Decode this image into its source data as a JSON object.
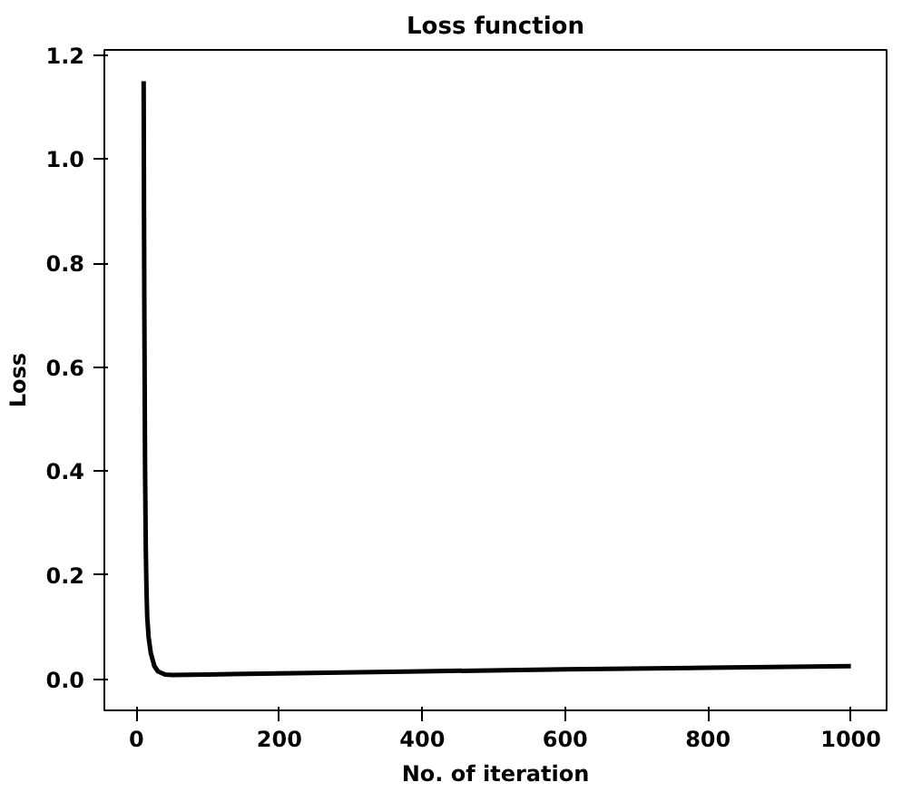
{
  "chart_data": {
    "type": "line",
    "title": "Loss function",
    "xlabel": "No. of iteration",
    "ylabel": "Loss",
    "xlim": [
      -45,
      1050
    ],
    "ylim": [
      -0.06,
      1.21
    ],
    "xticks": [
      0,
      200,
      400,
      600,
      800,
      1000
    ],
    "yticks": [
      {
        "value": 0,
        "label": "0.0"
      },
      {
        "value": 0.2,
        "label": "0.2"
      },
      {
        "value": 0.4,
        "label": "0.4"
      },
      {
        "value": 0.6,
        "label": "0.6"
      },
      {
        "value": 0.8,
        "label": "0.8"
      },
      {
        "value": 1,
        "label": "1.0"
      },
      {
        "value": 1.2,
        "label": "1.2"
      }
    ],
    "grid": false,
    "series": [
      {
        "color": "#000000",
        "x": [
          10,
          10.5,
          11,
          12,
          13,
          14,
          15,
          17,
          20,
          25,
          30,
          40,
          50,
          100,
          200,
          400,
          600,
          800,
          1000
        ],
        "values": [
          1.15,
          0.9,
          0.7,
          0.4,
          0.25,
          0.17,
          0.12,
          0.08,
          0.05,
          0.025,
          0.015,
          0.009,
          0.008,
          0.009,
          0.011,
          0.015,
          0.019,
          0.022,
          0.025
        ]
      }
    ]
  }
}
